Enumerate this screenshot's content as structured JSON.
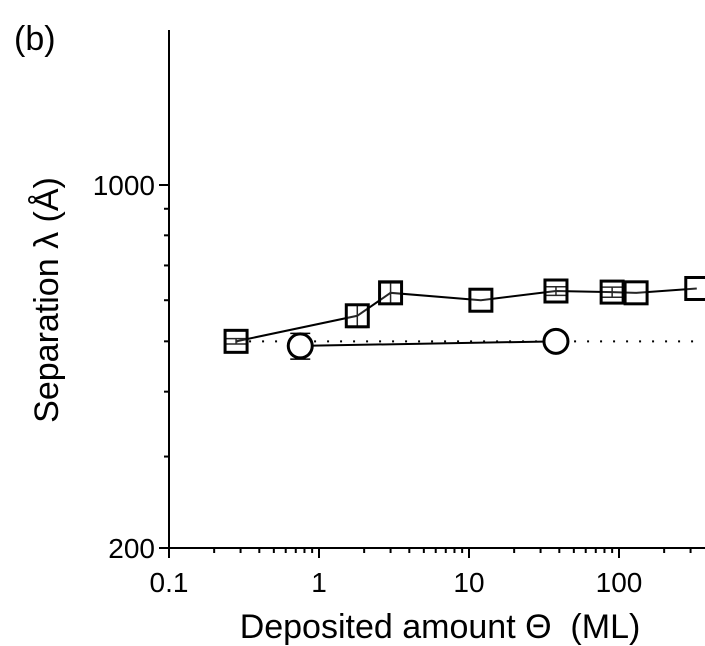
{
  "chart_data": {
    "type": "scatter",
    "panel_label": "(b)",
    "xlabel": "Deposited amount Θ  (ML)",
    "ylabel": "Separation λ (Å)",
    "xscale": "log",
    "yscale": "log",
    "xlim": [
      0.1,
      350
    ],
    "ylim": [
      200,
      2000
    ],
    "x_ticks": [
      0.1,
      1,
      10,
      100
    ],
    "x_tick_labels": [
      "0.1",
      "1",
      "10",
      "100"
    ],
    "y_ticks": [
      200,
      1000
    ],
    "y_tick_labels": [
      "200",
      "1000"
    ],
    "series": [
      {
        "marker": "square",
        "line": "solid",
        "x": [
          0.28,
          1.8,
          3.0,
          12,
          38,
          90,
          130,
          330
        ],
        "y": [
          500,
          560,
          620,
          600,
          625,
          622,
          620,
          632
        ],
        "err": [
          6,
          28,
          28,
          0,
          12,
          14,
          0,
          0
        ]
      },
      {
        "marker": "circle",
        "line": "solid",
        "x": [
          0.75,
          38
        ],
        "y": [
          490,
          500
        ],
        "err": [
          28,
          14
        ]
      }
    ],
    "reference_line": {
      "style": "dotted",
      "y": 500,
      "x_from": 0.28,
      "x_to": 350
    }
  }
}
